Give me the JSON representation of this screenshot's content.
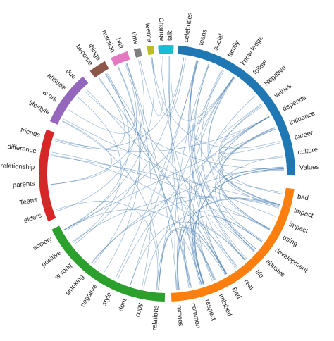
{
  "groups": [
    {
      "id": "blue",
      "color": "#1f77b4",
      "labels": [
        "celebrities",
        "teens",
        "social",
        "family",
        "know ledge",
        "follow",
        "Negative",
        "values",
        "depends",
        "Influence",
        "career",
        "culture",
        "Values"
      ]
    },
    {
      "id": "orange",
      "color": "#ff7f0e",
      "labels": [
        "bad",
        "impact",
        "impact",
        "using",
        "development",
        "abusive",
        "life",
        "real",
        "Bad",
        "imbibed",
        "respect",
        "common",
        "movies"
      ]
    },
    {
      "id": "green",
      "color": "#2ca02c",
      "labels": [
        "relations",
        "copy",
        "dont",
        "style",
        "negative",
        "smoking",
        "w rong",
        "positive",
        "society"
      ]
    },
    {
      "id": "red",
      "color": "#d62728",
      "labels": [
        "elders",
        "Teens",
        "parents",
        "relationship",
        "difference",
        "friends"
      ]
    },
    {
      "id": "purple",
      "color": "#9467bd",
      "labels": [
        "lifestyle",
        "w ork",
        "attitude",
        "due"
      ]
    },
    {
      "id": "brown",
      "color": "#8c564b",
      "labels": [
        "become",
        "things"
      ]
    },
    {
      "id": "pink",
      "color": "#e377c2",
      "labels": [
        "nutrition",
        "hair"
      ]
    },
    {
      "id": "grey",
      "color": "#7f7f7f",
      "labels": [
        "time"
      ]
    },
    {
      "id": "olive",
      "color": "#bcbd22",
      "labels": [
        "teenre"
      ]
    },
    {
      "id": "cyan",
      "color": "#17becf",
      "labels": [
        "Change",
        "talk"
      ]
    }
  ],
  "link_color": "#4a7fb5"
}
